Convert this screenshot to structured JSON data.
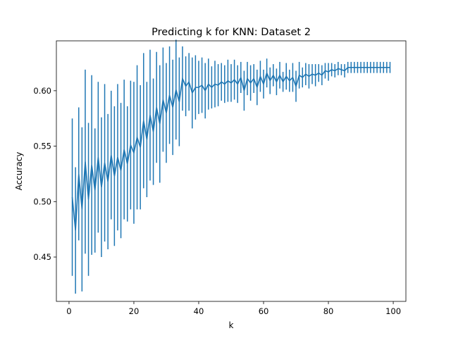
{
  "chart_data": {
    "type": "line",
    "title": "Predicting k for KNN: Dataset 2",
    "xlabel": "k",
    "ylabel": "Accuracy",
    "xlim": [
      -3.9,
      103.9
    ],
    "ylim": [
      0.41,
      0.645
    ],
    "xticks": [
      0,
      20,
      40,
      60,
      80,
      100
    ],
    "yticks": [
      0.45,
      0.5,
      0.55,
      0.6
    ],
    "ytick_labels": [
      "0.45",
      "0.50",
      "0.55",
      "0.60"
    ],
    "grid": false,
    "series_color": "#1f77b4",
    "series": [
      {
        "x": [
          1,
          2,
          3,
          4,
          5,
          6,
          7,
          8,
          9,
          10,
          11,
          12,
          13,
          14,
          15,
          16,
          17,
          18,
          19,
          20,
          21,
          22,
          23,
          24,
          25,
          26,
          27,
          28,
          29,
          30,
          31,
          32,
          33,
          34,
          35,
          36,
          37,
          38,
          39,
          40,
          41,
          42,
          43,
          44,
          45,
          46,
          47,
          48,
          49,
          50,
          51,
          52,
          53,
          54,
          55,
          56,
          57,
          58,
          59,
          60,
          61,
          62,
          63,
          64,
          65,
          66,
          67,
          68,
          69,
          70,
          71,
          72,
          73,
          74,
          75,
          76,
          77,
          78,
          79,
          80,
          81,
          82,
          83,
          84,
          85,
          86,
          87,
          88,
          89,
          90,
          91,
          92,
          93,
          94,
          95,
          96,
          97,
          98,
          99
        ],
        "y": [
          0.504,
          0.474,
          0.525,
          0.493,
          0.536,
          0.502,
          0.533,
          0.51,
          0.54,
          0.513,
          0.535,
          0.518,
          0.542,
          0.523,
          0.54,
          0.528,
          0.547,
          0.534,
          0.551,
          0.544,
          0.558,
          0.549,
          0.573,
          0.556,
          0.578,
          0.563,
          0.585,
          0.57,
          0.592,
          0.58,
          0.596,
          0.585,
          0.601,
          0.59,
          0.611,
          0.604,
          0.608,
          0.598,
          0.603,
          0.603,
          0.605,
          0.6,
          0.606,
          0.603,
          0.606,
          0.605,
          0.608,
          0.606,
          0.609,
          0.607,
          0.61,
          0.606,
          0.612,
          0.6,
          0.611,
          0.607,
          0.611,
          0.603,
          0.613,
          0.606,
          0.616,
          0.609,
          0.614,
          0.608,
          0.614,
          0.608,
          0.613,
          0.609,
          0.612,
          0.604,
          0.614,
          0.612,
          0.615,
          0.613,
          0.615,
          0.614,
          0.616,
          0.614,
          0.618,
          0.617,
          0.619,
          0.618,
          0.62,
          0.619,
          0.618,
          0.621,
          0.621,
          0.621,
          0.621,
          0.621,
          0.621,
          0.621,
          0.621,
          0.621,
          0.621,
          0.621,
          0.621,
          0.621,
          0.621
        ],
        "err": [
          0.071,
          0.057,
          0.06,
          0.074,
          0.083,
          0.069,
          0.081,
          0.056,
          0.068,
          0.063,
          0.071,
          0.061,
          0.058,
          0.063,
          0.066,
          0.061,
          0.063,
          0.052,
          0.058,
          0.064,
          0.065,
          0.056,
          0.061,
          0.052,
          0.059,
          0.048,
          0.05,
          0.053,
          0.047,
          0.045,
          0.044,
          0.043,
          0.045,
          0.04,
          0.029,
          0.027,
          0.026,
          0.032,
          0.029,
          0.024,
          0.025,
          0.025,
          0.023,
          0.019,
          0.021,
          0.019,
          0.017,
          0.017,
          0.019,
          0.017,
          0.018,
          0.017,
          0.014,
          0.018,
          0.015,
          0.016,
          0.013,
          0.016,
          0.014,
          0.013,
          0.013,
          0.012,
          0.01,
          0.012,
          0.012,
          0.009,
          0.012,
          0.01,
          0.013,
          0.014,
          0.012,
          0.009,
          0.01,
          0.011,
          0.009,
          0.01,
          0.008,
          0.009,
          0.007,
          0.008,
          0.006,
          0.006,
          0.006,
          0.005,
          0.006,
          0.005,
          0.005,
          0.005,
          0.005,
          0.005,
          0.005,
          0.005,
          0.005,
          0.005,
          0.005,
          0.005,
          0.005,
          0.005,
          0.005
        ]
      }
    ]
  }
}
